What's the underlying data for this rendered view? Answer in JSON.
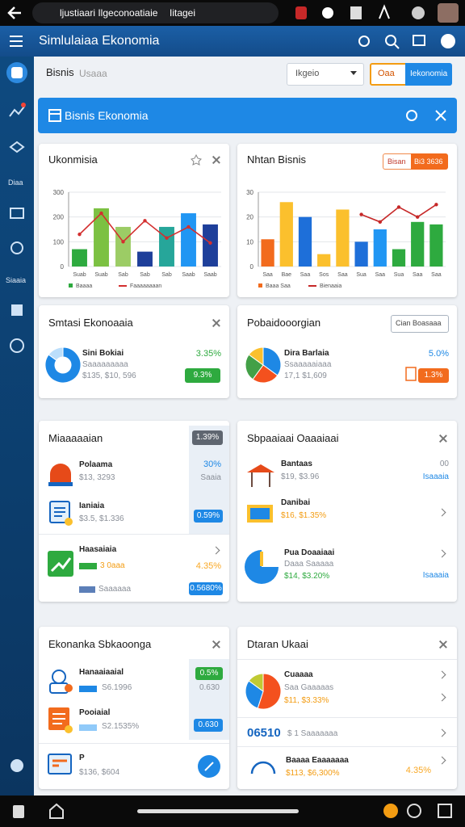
{
  "status_bar": {
    "title": "ljustiaari Ilgeconoatiaie",
    "tab": "Iitagei"
  },
  "app_bar": {
    "title": "Simlulaiaa Ekonomia"
  },
  "sidebar": {
    "items": [
      "Diaa",
      "Siaaia"
    ]
  },
  "toolbar": {
    "title": "Bisnis",
    "subtitle": "Usaaa",
    "dropdown": "Ikgeio",
    "buttons": [
      "Oaa",
      "Iekonomia"
    ]
  },
  "banner": {
    "title": "Bisnis Ekonomia"
  },
  "cards": [
    {
      "title": "Ukonmisia",
      "chart": {
        "categories": [
          "Suab",
          "Suab",
          "Sab",
          "Sab",
          "Sab",
          "Saab",
          "Saab"
        ],
        "bars": {
          "name": "Baaaa",
          "values": [
            70,
            235,
            160,
            60,
            160,
            215,
            170
          ],
          "colors": [
            "#2eaa3f",
            "#7cc142",
            "#9ccc65",
            "#1e3f9a",
            "#26a69a",
            "#2196f3",
            "#1e3f9a"
          ]
        },
        "line": {
          "name": "Faaaaaaaan",
          "color": "#d32f2f",
          "values": [
            130,
            215,
            100,
            185,
            115,
            160,
            95
          ]
        },
        "ylim": [
          0,
          300
        ],
        "yticks": [
          0,
          100,
          200,
          300
        ],
        "grid": true
      }
    },
    {
      "title": "Nhtan Bisnis",
      "buttons": [
        "Bisan",
        "Bi3 3636"
      ],
      "chart": {
        "categories": [
          "Saa",
          "Bae",
          "Saa",
          "Sos",
          "Saa",
          "Sua",
          "Saa",
          "Sua",
          "Saa",
          "Saa"
        ],
        "bars": {
          "name": "Baaa Saa",
          "values": [
            11,
            26,
            20,
            5,
            23,
            10,
            15,
            7,
            18,
            17
          ],
          "colors": [
            "#f26b1d",
            "#fbc02d",
            "#1e6fd9",
            "#fbc02d",
            "#fbc02d",
            "#1e6fd9",
            "#2196f3",
            "#2eaa3f",
            "#2eaa3f",
            "#2eaa3f"
          ]
        },
        "line": {
          "name": "Bienaaia",
          "color": "#c62828",
          "values": [
            null,
            null,
            null,
            null,
            null,
            21,
            18,
            24,
            20,
            25
          ]
        },
        "ylim": [
          0,
          30
        ],
        "yticks": [
          0,
          10,
          20,
          30
        ],
        "grid": true
      }
    },
    {
      "title": "Smtasi Ekonoaaia",
      "pie": {
        "values": [
          85,
          15
        ],
        "colors": [
          "#1e88e5",
          "#bbdefb"
        ]
      },
      "name": "Sini Bokiai",
      "sub": "Saaaaaaaaa",
      "amount": "$135, $10, 596",
      "value": "3.35%",
      "badge": "9.3%"
    },
    {
      "title": "Pobaidooorgian",
      "button": "Cian Boasaaa",
      "pie": {
        "values": [
          35,
          25,
          25,
          15
        ],
        "colors": [
          "#1e88e5",
          "#f4511e",
          "#43a047",
          "#fbc02d"
        ]
      },
      "name": "Dira Barlaia",
      "sub": "Ssaaaaaiaaa",
      "amount": "17,1 $1,609",
      "value": "5.0%",
      "badge": "1.3%"
    },
    {
      "title": "Miaaaaaian",
      "badge": "1.39%",
      "items": [
        {
          "name": "Polaama",
          "amount": "$13, 3293",
          "value": "30%",
          "note": "Saaia"
        },
        {
          "name": "Ianiaia",
          "amount": "$3.5, $1.336",
          "badge": "0.59%"
        },
        {
          "name": "Haasaiaia",
          "bar_label": "3 0aaa",
          "value": "4.35%",
          "sub": "Saaaaaa",
          "badge": "0.5680%"
        }
      ]
    },
    {
      "title": "Sbpaaiaai Oaaaiaai",
      "items": [
        {
          "name": "Bantaas",
          "amount": "$19, $3.96",
          "value": "00",
          "link": "Isaaaia"
        },
        {
          "name": "Danibai",
          "amount": "$16, $1.35%"
        },
        {
          "name": "Pua Doaaiaai",
          "sub": "Daaa Saaaaa",
          "amount": "$14, $3.20%",
          "link": "Isaaaia"
        }
      ]
    },
    {
      "title": "Ekonanka Sbkaoonga",
      "items": [
        {
          "name": "Hanaaiaaial",
          "amount": "S6.1996",
          "badge": "0.5%",
          "note": "0.630"
        },
        {
          "name": "Pooiaial",
          "amount": "S2.1535%",
          "badge": "0.630"
        },
        {
          "name": "P",
          "amount": "$136, $604"
        }
      ]
    },
    {
      "title": "Dtaran Ukaai",
      "pie": {
        "values": [
          55,
          30,
          15
        ],
        "colors": [
          "#f4511e",
          "#1e88e5",
          "#c0ca33"
        ]
      },
      "items": [
        {
          "name": "Cuaaaa",
          "sub": "Saa Gaaaaas",
          "amount": "$11, $3.33%"
        },
        {
          "name": "06510",
          "sub": "$ 1 Saaaaaaa"
        },
        {
          "name": "Baaaa Eaaaaaaa",
          "amount": "$113, $6,300%",
          "value": "4.35%"
        }
      ]
    }
  ]
}
